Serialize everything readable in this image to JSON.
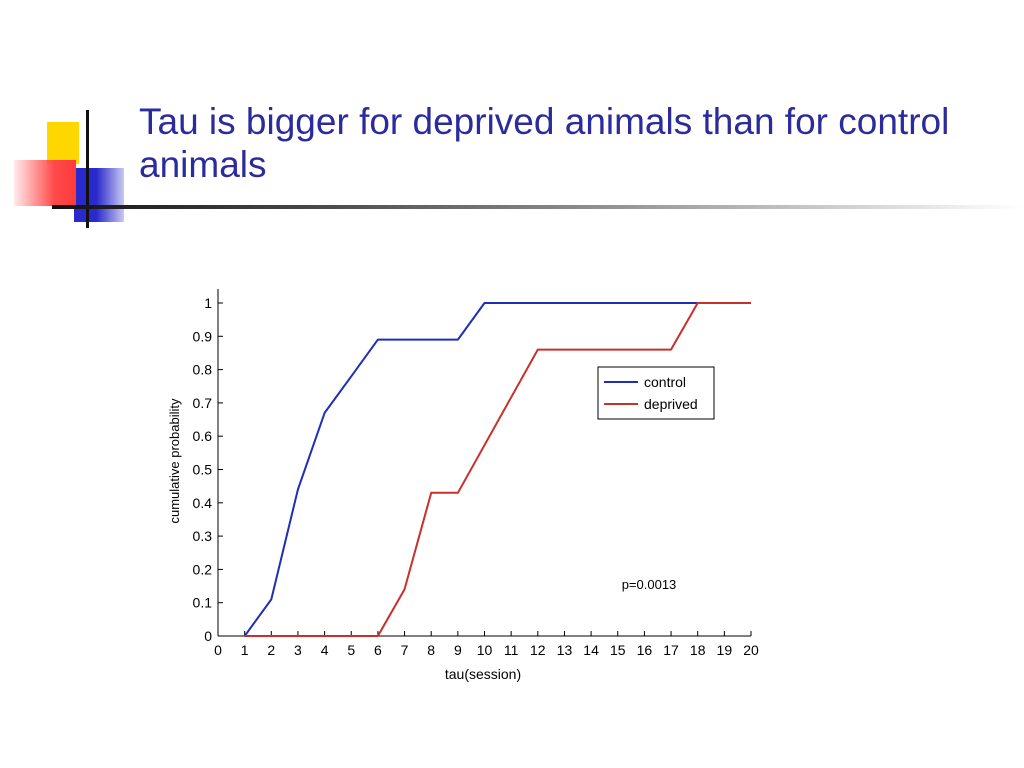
{
  "slide": {
    "title": "Tau is bigger for deprived animals than for control animals"
  },
  "colors": {
    "title": "#2b2b9e",
    "accent_yellow": "#ffd700",
    "accent_blue": "#2a2acc",
    "accent_red": "#ff4a4a"
  },
  "chart_data": {
    "type": "line",
    "title": "",
    "xlabel": "tau(session)",
    "ylabel": "cumulative probability",
    "xlim": [
      0,
      20
    ],
    "ylim": [
      0,
      1
    ],
    "xticks": [
      "0",
      "1",
      "2",
      "3",
      "4",
      "5",
      "6",
      "7",
      "8",
      "9",
      "10",
      "11",
      "12",
      "13",
      "14",
      "15",
      "16",
      "17",
      "18",
      "19",
      "20"
    ],
    "yticks": [
      "0",
      "0.1",
      "0.2",
      "0.3",
      "0.4",
      "0.5",
      "0.6",
      "0.7",
      "0.8",
      "0.9",
      "1"
    ],
    "grid": false,
    "legend": "upper-right",
    "annotation": "p=0.0013",
    "series": [
      {
        "name": "control",
        "color": "#1f2fb5",
        "x": [
          1,
          2,
          3,
          4,
          5,
          6,
          7,
          8,
          9,
          10,
          18
        ],
        "y": [
          0,
          0.11,
          0.44,
          0.67,
          0.78,
          0.89,
          0.89,
          0.89,
          0.89,
          1.0,
          1.0
        ]
      },
      {
        "name": "deprived",
        "color": "#c8302a",
        "x": [
          1,
          6,
          7,
          8,
          9,
          12,
          17,
          18,
          20
        ],
        "y": [
          0,
          0,
          0.14,
          0.43,
          0.43,
          0.86,
          0.86,
          1.0,
          1.0
        ]
      }
    ]
  }
}
